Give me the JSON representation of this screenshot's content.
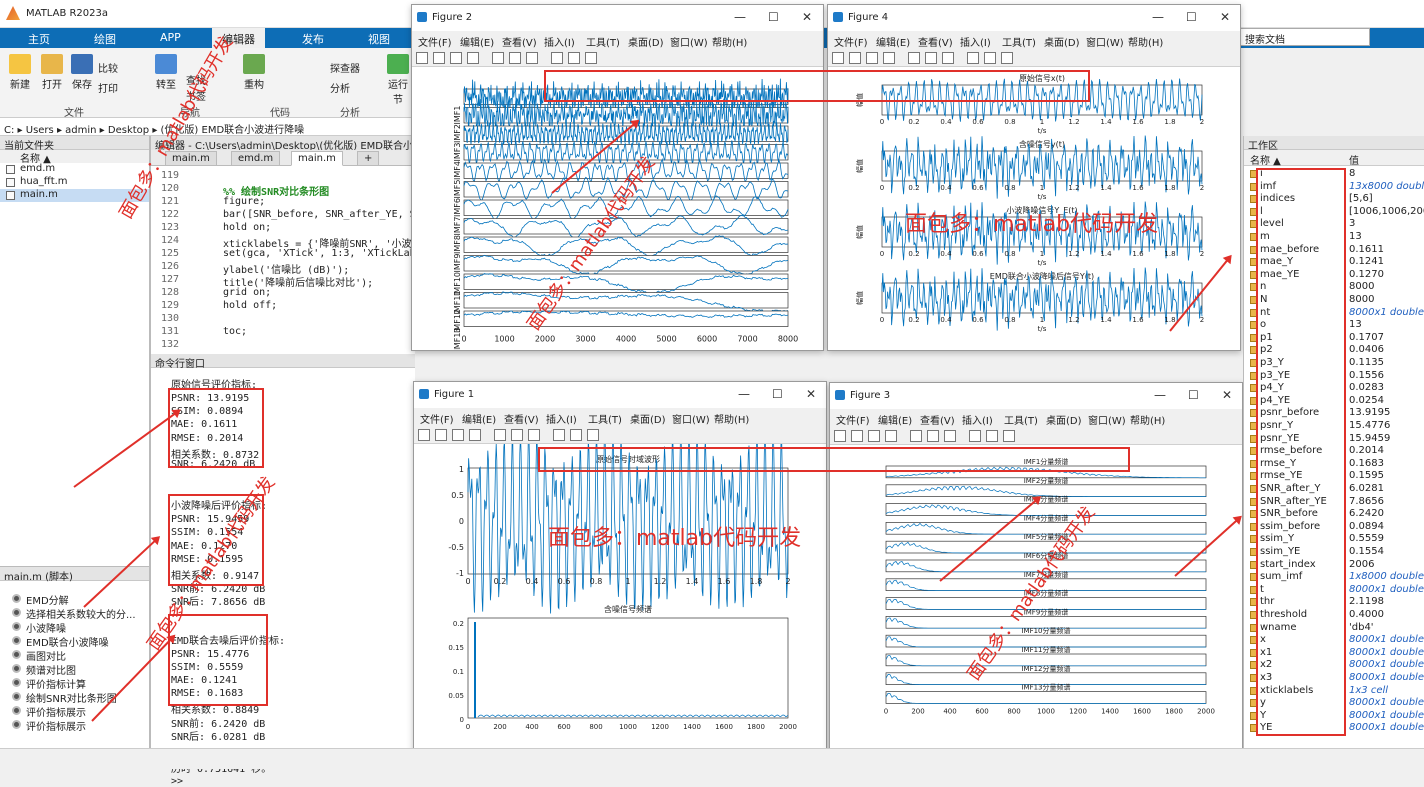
{
  "app": {
    "title": "MATLAB R2023a",
    "search_placeholder": "搜索文档"
  },
  "ribbon": {
    "tabs": [
      "主页",
      "绘图",
      "APP",
      "编辑器",
      "发布",
      "视图"
    ],
    "buttons": {
      "new": "新建",
      "open": "打开",
      "save": "保存",
      "compare": "比较",
      "print": "打印",
      "goto": "转至",
      "find": "查找",
      "bookmark": "书签",
      "refactor": "重构",
      "analyze": "分析",
      "explorer": "探查器",
      "run": "运行",
      "section": "节"
    },
    "groups": {
      "file": "文件",
      "nav": "导航",
      "code": "代码",
      "analysis": "分析"
    }
  },
  "address": {
    "path": [
      "C:",
      "Users",
      "admin",
      "Desktop",
      "(优化版) EMD联合小波进行降噪"
    ]
  },
  "current_folder": {
    "title": "当前文件夹",
    "col_name": "名称 ▲",
    "files": [
      "emd.m",
      "hua_fft.m",
      "main.m"
    ]
  },
  "script_panel": {
    "title": "main.m  (脚本)",
    "items": [
      "EMD分解",
      "选择相关系数较大的分...",
      "小波降噪",
      "EMD联合小波降噪",
      "画图对比",
      "频谱对比图",
      "评价指标计算",
      "绘制SNR对比条形图",
      "评价指标展示",
      "评价指标展示"
    ]
  },
  "editor": {
    "header": "编辑器 - C:\\Users\\admin\\Desktop\\(优化版) EMD联合小...",
    "tabs": [
      "main.m",
      "emd.m",
      "main.m",
      "+"
    ],
    "lines": [
      {
        "n": "119",
        "t": ""
      },
      {
        "n": "120",
        "t": "%% 绘制SNR对比条形图"
      },
      {
        "n": "121",
        "t": "figure;"
      },
      {
        "n": "122",
        "t": "bar([SNR_before, SNR_after_YE, SNR_"
      },
      {
        "n": "123",
        "t": "hold on;"
      },
      {
        "n": "124",
        "t": "xticklabels = {'降噪前SNR', '小波降"
      },
      {
        "n": "125",
        "t": "set(gca, 'XTick', 1:3, 'XTickLabel'"
      },
      {
        "n": "126",
        "t": "ylabel('信噪比 (dB)');"
      },
      {
        "n": "127",
        "t": "title('降噪前后信噪比对比');"
      },
      {
        "n": "128",
        "t": "grid on;"
      },
      {
        "n": "129",
        "t": "hold off;"
      },
      {
        "n": "130",
        "t": ""
      },
      {
        "n": "131",
        "t": "toc;"
      },
      {
        "n": "132",
        "t": ""
      }
    ]
  },
  "command_window": {
    "title": "命令行窗口",
    "sections": [
      {
        "heading": "原始信号评价指标:",
        "lines": [
          "PSNR: 13.9195",
          "SSIM: 0.0894",
          "MAE: 0.1611",
          "RMSE: 0.2014",
          "相关系数: 0.8732",
          "SNR: 6.2420 dB"
        ]
      },
      {
        "heading": "小波降噪后评价指标:",
        "lines": [
          "PSNR: 15.9459",
          "SSIM: 0.1554",
          "MAE: 0.1270",
          "RMSE: 0.1595",
          "相关系数: 0.9147",
          "SNR前: 6.2420 dB",
          "SNR后: 7.8656 dB"
        ]
      },
      {
        "heading": "EMD联合去噪后评价指标:",
        "lines": [
          "PSNR: 15.4776",
          "SSIM: 0.5559",
          "MAE: 0.1241",
          "RMSE: 0.1683",
          "相关系数: 0.8849",
          "SNR前: 6.2420 dB",
          "SNR后: 6.0281 dB"
        ]
      }
    ],
    "elapsed": "历时 0.751641 秒。",
    "prompt": ">>"
  },
  "figure_menu": [
    "文件(F)",
    "编辑(E)",
    "查看(V)",
    "插入(I)",
    "工具(T)",
    "桌面(D)",
    "窗口(W)",
    "帮助(H)"
  ],
  "figures": {
    "fig2": {
      "name": "Figure 2",
      "ylabels": [
        "IMF1",
        "IMF2",
        "IMF3",
        "IMF4",
        "IMF5",
        "IMF6",
        "IMF7",
        "IMF8",
        "IMF9",
        "IMF10",
        "IMF11",
        "IMF12",
        "IMF13"
      ],
      "xticks": [
        "0",
        "1000",
        "2000",
        "3000",
        "4000",
        "5000",
        "6000",
        "7000",
        "8000"
      ]
    },
    "fig4": {
      "name": "Figure 4",
      "titles": [
        "原始信号x(t)",
        "含噪信号y(t)",
        "小波降噪信号Y_E(t)",
        "EMD联合小波降噪后信号Y(t)"
      ],
      "xlabel": "t/s",
      "ylabel": "幅值",
      "xticks": [
        "0",
        "0.2",
        "0.4",
        "0.6",
        "0.8",
        "1",
        "1.2",
        "1.4",
        "1.6",
        "1.8",
        "2"
      ]
    },
    "fig1": {
      "name": "Figure 1",
      "titles": [
        "原始信号时域波形",
        "含噪信号频谱"
      ],
      "xticks_top": [
        "0",
        "0.2",
        "0.4",
        "0.6",
        "0.8",
        "1",
        "1.2",
        "1.4",
        "1.6",
        "1.8",
        "2"
      ],
      "yticks_top": [
        "1",
        "0.5",
        "0",
        "-0.5",
        "-1"
      ],
      "xticks_bottom": [
        "0",
        "200",
        "400",
        "600",
        "800",
        "1000",
        "1200",
        "1400",
        "1600",
        "1800",
        "2000"
      ],
      "yticks_bottom": [
        "0.2",
        "0.15",
        "0.1",
        "0.05",
        "0"
      ]
    },
    "fig3": {
      "name": "Figure 3",
      "titles": [
        "IMF1分量频谱",
        "IMF2分量频谱",
        "IMF3分量频谱",
        "IMF4分量频谱",
        "IMF5分量频谱",
        "IMF6分量频谱",
        "IMF7分量频谱",
        "IMF8分量频谱",
        "IMF9分量频谱",
        "IMF10分量频谱",
        "IMF11分量频谱",
        "IMF12分量频谱",
        "IMF13分量频谱"
      ],
      "xticks": [
        "0",
        "200",
        "400",
        "600",
        "800",
        "1000",
        "1200",
        "1400",
        "1600",
        "1800",
        "2000"
      ]
    }
  },
  "workspace": {
    "title": "工作区",
    "col_name": "名称 ▲",
    "col_value": "值",
    "vars": [
      {
        "n": "i",
        "v": "8"
      },
      {
        "n": "imf",
        "v": "13x8000 double"
      },
      {
        "n": "indices",
        "v": "[5,6]"
      },
      {
        "n": "l",
        "v": "[1006,1006,200"
      },
      {
        "n": "level",
        "v": "3"
      },
      {
        "n": "m",
        "v": "13"
      },
      {
        "n": "mae_before",
        "v": "0.1611"
      },
      {
        "n": "mae_Y",
        "v": "0.1241"
      },
      {
        "n": "mae_YE",
        "v": "0.1270"
      },
      {
        "n": "n",
        "v": "8000"
      },
      {
        "n": "N",
        "v": "8000"
      },
      {
        "n": "nt",
        "v": "8000x1 double"
      },
      {
        "n": "o",
        "v": "13"
      },
      {
        "n": "p1",
        "v": "0.1707"
      },
      {
        "n": "p2",
        "v": "0.0406"
      },
      {
        "n": "p3_Y",
        "v": "0.1135"
      },
      {
        "n": "p3_YE",
        "v": "0.1556"
      },
      {
        "n": "p4_Y",
        "v": "0.0283"
      },
      {
        "n": "p4_YE",
        "v": "0.0254"
      },
      {
        "n": "psnr_before",
        "v": "13.9195"
      },
      {
        "n": "psnr_Y",
        "v": "15.4776"
      },
      {
        "n": "psnr_YE",
        "v": "15.9459"
      },
      {
        "n": "rmse_before",
        "v": "0.2014"
      },
      {
        "n": "rmse_Y",
        "v": "0.1683"
      },
      {
        "n": "rmse_YE",
        "v": "0.1595"
      },
      {
        "n": "SNR_after_Y",
        "v": "6.0281"
      },
      {
        "n": "SNR_after_YE",
        "v": "7.8656"
      },
      {
        "n": "SNR_before",
        "v": "6.2420"
      },
      {
        "n": "ssim_before",
        "v": "0.0894"
      },
      {
        "n": "ssim_Y",
        "v": "0.5559"
      },
      {
        "n": "ssim_YE",
        "v": "0.1554"
      },
      {
        "n": "start_index",
        "v": "2006"
      },
      {
        "n": "sum_imf",
        "v": "1x8000 double"
      },
      {
        "n": "t",
        "v": "8000x1 double"
      },
      {
        "n": "thr",
        "v": "2.1198"
      },
      {
        "n": "threshold",
        "v": "0.4000"
      },
      {
        "n": "wname",
        "v": "'db4'"
      },
      {
        "n": "x",
        "v": "8000x1 double"
      },
      {
        "n": "x1",
        "v": "8000x1 double"
      },
      {
        "n": "x2",
        "v": "8000x1 double"
      },
      {
        "n": "x3",
        "v": "8000x1 double"
      },
      {
        "n": "xticklabels",
        "v": "1x3 cell"
      },
      {
        "n": "y",
        "v": "8000x1 double"
      },
      {
        "n": "Y",
        "v": "8000x1 double"
      },
      {
        "n": "YE",
        "v": "8000x1 double"
      }
    ]
  },
  "watermark": "面包多：matlab代码开发",
  "colors": {
    "accent": "#0d6db6",
    "plot_line": "#0072bd",
    "annotation": "#e0302a"
  }
}
